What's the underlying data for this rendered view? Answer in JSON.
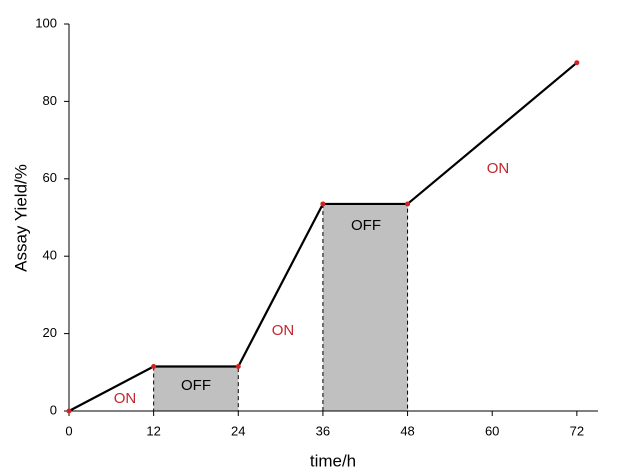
{
  "chart_data": {
    "type": "line",
    "x_label": "time/h",
    "y_label": "Assay Yield/%",
    "x": [
      0,
      12,
      24,
      36,
      48,
      72
    ],
    "series": [
      {
        "values": [
          0,
          11.5,
          11.5,
          53.5,
          53.5,
          90
        ],
        "color": "#000000",
        "marker_color": "#d42020"
      }
    ],
    "xlim": [
      0,
      75
    ],
    "xticks": [
      0,
      12,
      24,
      36,
      48,
      60,
      72
    ],
    "ylim": [
      0,
      100
    ],
    "yticks": [
      0,
      20,
      40,
      60,
      80,
      100
    ],
    "grid": false,
    "shade_color": "#c0c0c0",
    "annotations": [
      "ON",
      "OFF",
      "ON",
      "OFF",
      "ON"
    ]
  }
}
